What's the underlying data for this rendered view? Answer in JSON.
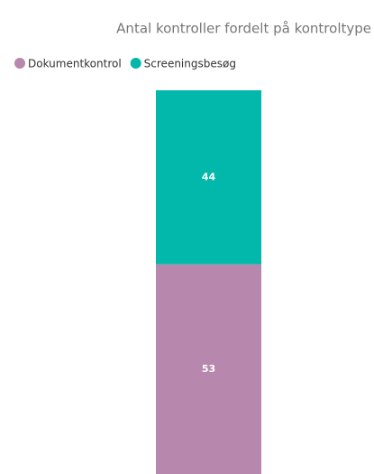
{
  "chart_data": {
    "type": "stacked_bar",
    "title": "Antal kontroller fordelt på kontroltype",
    "categories": [
      null
    ],
    "series": [
      {
        "name": "Dokumentkontrol",
        "color": "#b887ad",
        "values": [
          53
        ]
      },
      {
        "name": "Screeningsbesøg",
        "color": "#01b8aa",
        "values": [
          44
        ]
      }
    ],
    "legend": "top-left"
  }
}
